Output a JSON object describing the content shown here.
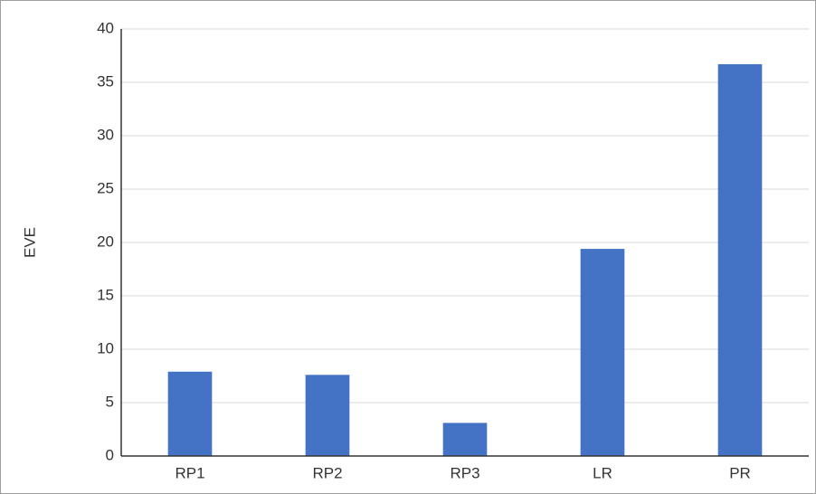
{
  "chart_data": {
    "type": "bar",
    "y_label": "EVE",
    "categories": [
      "RP1",
      "RP2",
      "RP3",
      "LR",
      "PR"
    ],
    "values": [
      7.9,
      7.6,
      3.1,
      19.4,
      36.7
    ],
    "color": "#4472c4",
    "ylim": [
      0,
      40
    ],
    "yticks": [
      0,
      5,
      10,
      15,
      20,
      25,
      30,
      35,
      40
    ],
    "grid": true
  }
}
